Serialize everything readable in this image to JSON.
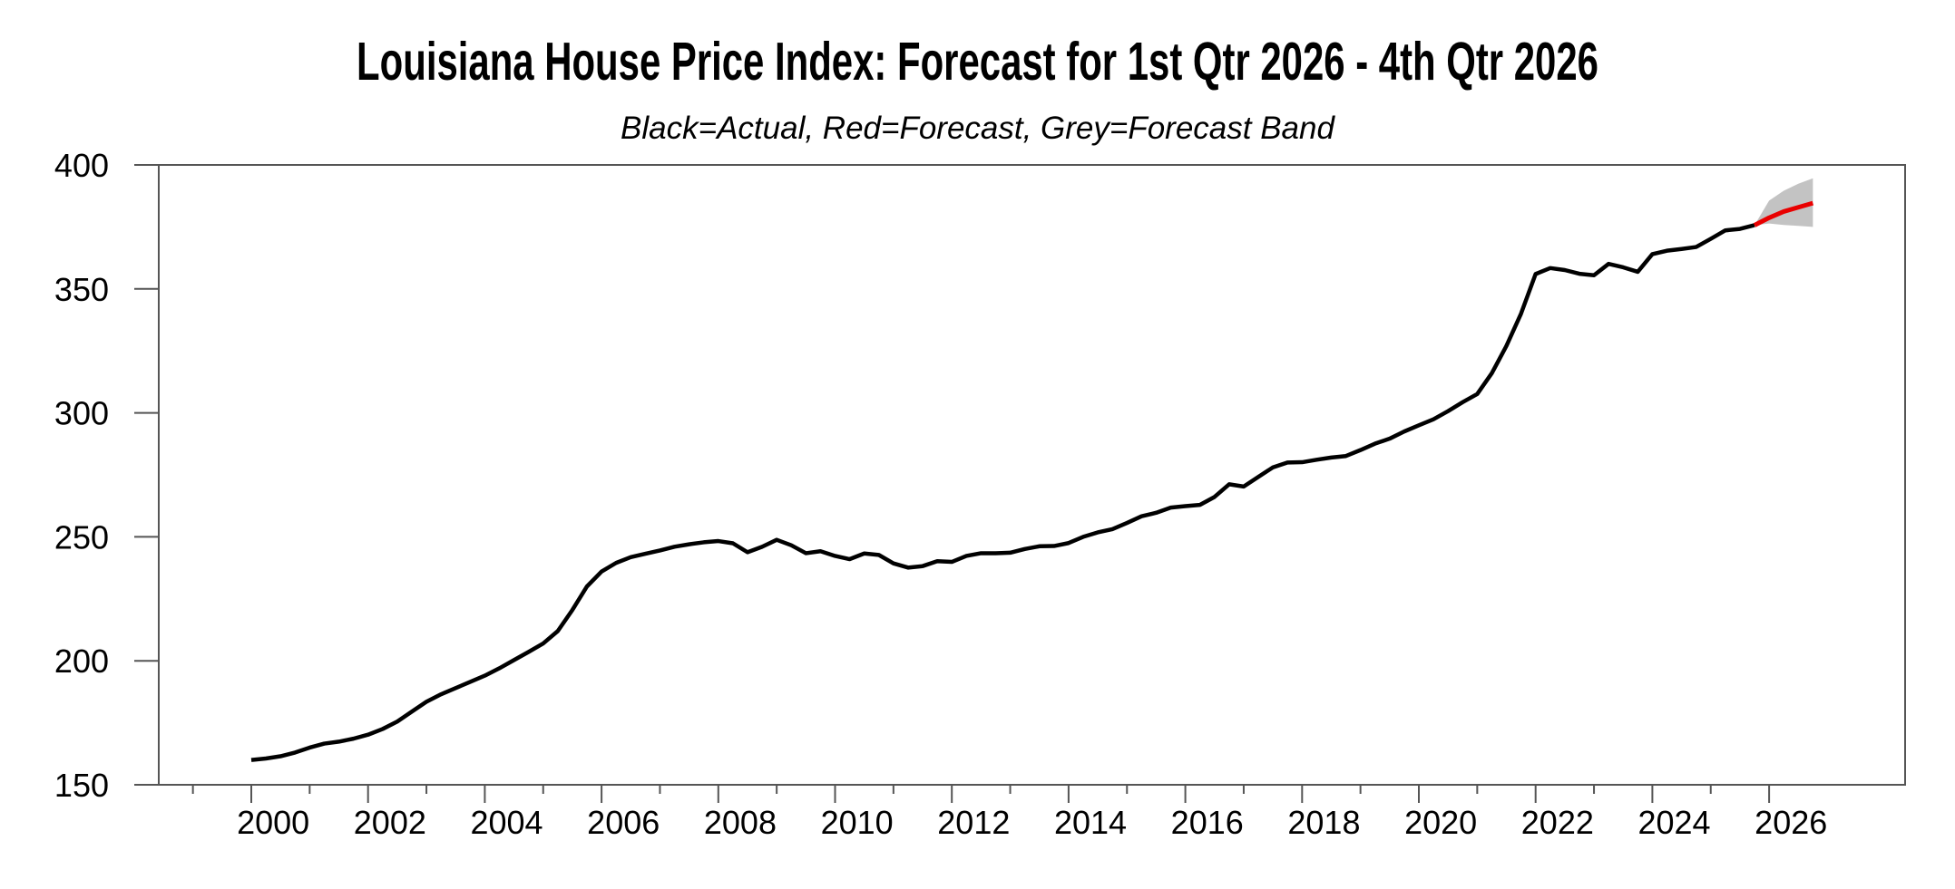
{
  "header": {
    "title": "Louisiana House Price Index: Forecast for 1st Qtr 2026 - 4th Qtr 2026",
    "subtitle": "Black=Actual, Red=Forecast, Grey=Forecast Band"
  },
  "chart_data": {
    "type": "line",
    "title": "Louisiana House Price Index: Forecast for 1st Qtr 2026 - 4th Qtr 2026",
    "subtitle": "Black=Actual, Red=Forecast, Grey=Forecast Band",
    "legend": {
      "actual_label": "Black=Actual",
      "forecast_label": "Red=Forecast",
      "band_label": "Grey=Forecast Band"
    },
    "x_axis": {
      "unit": "year-quarter",
      "quarter_step": 0.25,
      "minor_tick_years": [
        1999,
        2000,
        2001,
        2002,
        2003,
        2004,
        2005,
        2006,
        2007,
        2008,
        2009,
        2010,
        2011,
        2012,
        2013,
        2014,
        2015,
        2016,
        2017,
        2018,
        2019,
        2020,
        2021,
        2022,
        2023,
        2024,
        2025,
        2026
      ],
      "labeled_tick_years": [
        2000,
        2002,
        2004,
        2006,
        2008,
        2010,
        2012,
        2014,
        2016,
        2018,
        2020,
        2022,
        2024,
        2026
      ],
      "label_center_offset_years": 0.375
    },
    "y_axis": {
      "min": 150,
      "max": 400,
      "tick_interval": 50,
      "ticks": [
        150,
        200,
        250,
        300,
        350,
        400
      ]
    },
    "series": {
      "actual": {
        "name": "Actual",
        "x_start": 2000.0,
        "values": [
          160.0,
          160.6,
          161.5,
          163.0,
          165.0,
          166.6,
          167.4,
          168.6,
          170.2,
          172.5,
          175.5,
          179.5,
          183.5,
          186.5,
          189.0,
          191.5,
          194.0,
          197.0,
          200.3,
          203.6,
          207.0,
          212.0,
          220.5,
          230.0,
          236.0,
          239.5,
          241.8,
          243.2,
          244.5,
          246.0,
          247.0,
          247.8,
          248.3,
          247.4,
          243.8,
          246.0,
          248.8,
          246.6,
          243.4,
          244.2,
          242.3,
          241.0,
          243.3,
          242.7,
          239.3,
          237.6,
          238.2,
          240.2,
          239.9,
          242.3,
          243.4,
          243.4,
          243.6,
          245.1,
          246.2,
          246.3,
          247.5,
          250.0,
          251.8,
          253.1,
          255.6,
          258.3,
          259.7,
          261.8,
          262.4,
          262.9,
          266.1,
          271.2,
          270.3,
          274.2,
          278.0,
          280.0,
          280.1,
          281.1,
          282.0,
          282.6,
          285.0,
          287.6,
          289.6,
          292.5,
          295.0,
          297.4,
          300.7,
          304.3,
          307.6,
          316.0,
          327.0,
          340.0,
          356.0,
          358.4,
          357.6,
          356.1,
          355.5,
          360.1,
          358.7,
          356.9,
          364.0,
          365.4,
          366.1,
          366.9,
          370.2,
          373.6,
          374.2,
          375.7
        ]
      },
      "forecast": {
        "name": "Forecast",
        "x_start": 2025.75,
        "values": [
          375.7,
          378.7,
          381.2,
          382.9,
          384.6
        ]
      },
      "band": {
        "name": "Forecast Band",
        "x_start": 2025.75,
        "upper": [
          375.7,
          385.6,
          389.6,
          392.4,
          394.6
        ],
        "lower": [
          375.7,
          376.4,
          375.8,
          375.4,
          375.0
        ]
      }
    },
    "colors": {
      "actual": "#000000",
      "forecast": "#e90000",
      "band": "#c3c3c3",
      "axis": "#555555",
      "text": "#000000"
    }
  }
}
